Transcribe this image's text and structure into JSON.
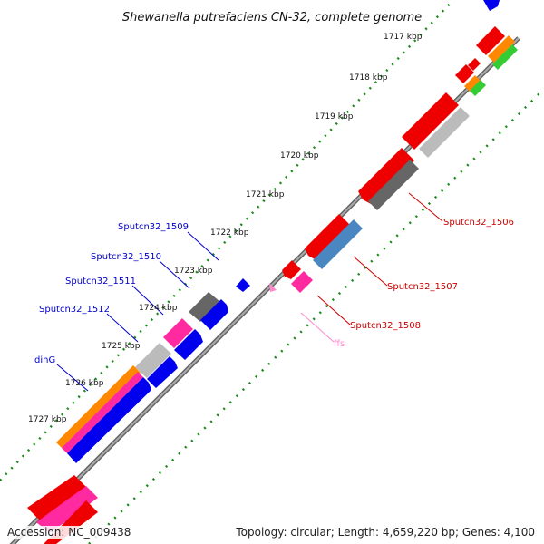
{
  "title": "Shewanella putrefaciens CN-32, complete genome",
  "footer": {
    "accession": "Accession: NC_009438",
    "summary": "Topology: circular; Length: 4,659,220 bp; Genes: 4,100"
  },
  "ticks": [
    "1717 kbp",
    "1718 kbp",
    "1719 kbp",
    "1720 kbp",
    "1721 kbp",
    "1722 kbp",
    "1723 kbp",
    "1724 kbp",
    "1725 kbp",
    "1726 kbp",
    "1727 kbp"
  ],
  "gene_labels": {
    "sputcn32_1506": "Sputcn32_1506",
    "sputcn32_1507": "Sputcn32_1507",
    "sputcn32_1508": "Sputcn32_1508",
    "ffs": "ffs",
    "sputcn32_1509": "Sputcn32_1509",
    "sputcn32_1510": "Sputcn32_1510",
    "sputcn32_1511": "Sputcn32_1511",
    "sputcn32_1512": "Sputcn32_1512",
    "dinG": "dinG"
  },
  "colors": {
    "backbone": "#888888",
    "gc_skew": "#1a8a1a",
    "cds_red": "#ee0000",
    "cds_blue": "#0000ee",
    "gray_light": "#bbbbbb",
    "gray_dark": "#666666",
    "orange": "#ff8800",
    "pink": "#ff2aa0",
    "steel_blue": "#4a86c0",
    "rna_pink": "#ff88cc",
    "green": "#33cc33"
  }
}
